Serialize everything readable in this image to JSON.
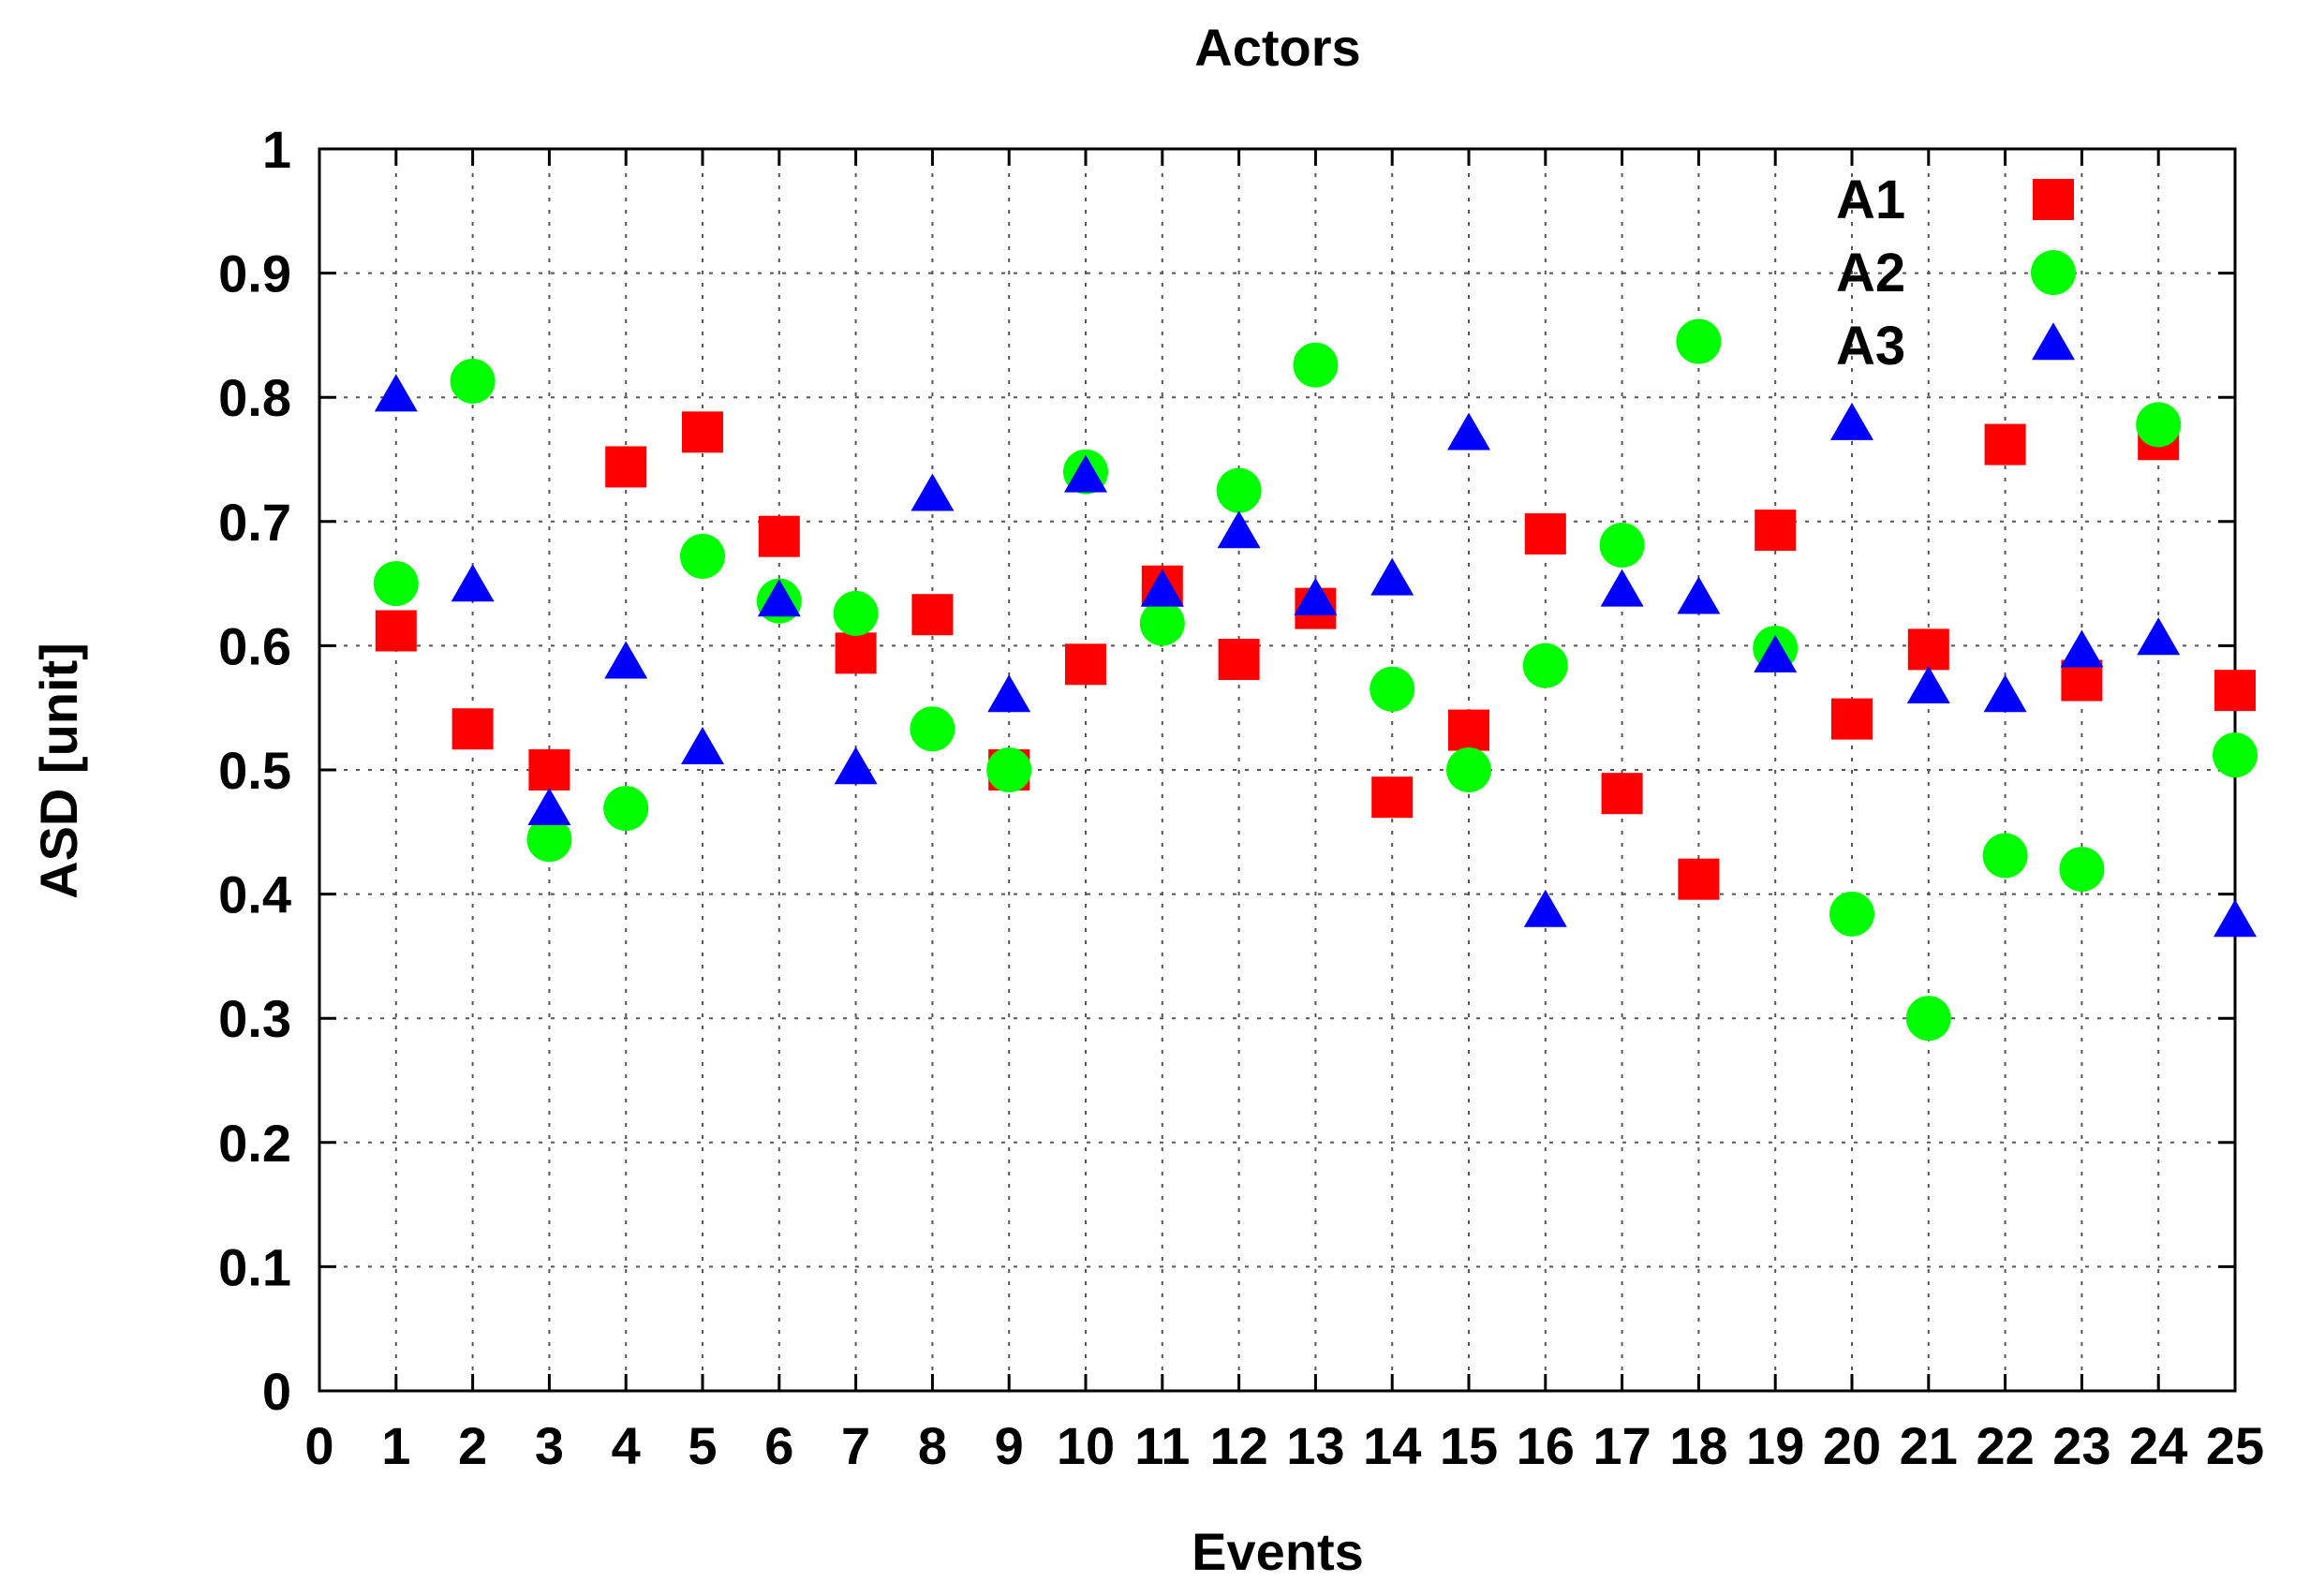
{
  "chart_data": {
    "type": "scatter",
    "title": "Actors",
    "xlabel": "Events",
    "ylabel": "ASD [unit]",
    "xlim": [
      0,
      25
    ],
    "ylim": [
      0,
      1
    ],
    "xticks": [
      "0",
      "1",
      "2",
      "3",
      "4",
      "5",
      "6",
      "7",
      "8",
      "9",
      "10",
      "11",
      "12",
      "13",
      "14",
      "15",
      "16",
      "17",
      "18",
      "19",
      "20",
      "21",
      "22",
      "23",
      "24",
      "25"
    ],
    "yticks": [
      "0",
      "0.1",
      "0.2",
      "0.3",
      "0.4",
      "0.5",
      "0.6",
      "0.7",
      "0.8",
      "0.9",
      "1"
    ],
    "grid": true,
    "legend_position": "top-right",
    "x": [
      1,
      2,
      3,
      4,
      5,
      6,
      7,
      8,
      9,
      10,
      11,
      12,
      13,
      14,
      15,
      16,
      17,
      18,
      19,
      20,
      21,
      22,
      23,
      24,
      25
    ],
    "series": [
      {
        "name": "A1",
        "marker": "square",
        "color": "#ff0000",
        "values": [
          0.612,
          0.533,
          0.5,
          0.744,
          0.772,
          0.688,
          0.594,
          0.625,
          0.5,
          0.585,
          0.648,
          0.589,
          0.63,
          0.478,
          0.532,
          0.69,
          0.481,
          0.412,
          0.693,
          0.541,
          0.597,
          0.762,
          0.572,
          0.766,
          0.564
        ]
      },
      {
        "name": "A2",
        "marker": "circle",
        "color": "#00ff00",
        "values": [
          0.65,
          0.813,
          0.444,
          0.469,
          0.672,
          0.636,
          0.626,
          0.533,
          0.5,
          0.74,
          0.618,
          0.725,
          0.826,
          0.565,
          0.5,
          0.584,
          0.681,
          0.845,
          0.598,
          0.384,
          0.3,
          0.431,
          0.42,
          0.778,
          0.512
        ]
      },
      {
        "name": "A3",
        "marker": "triangle",
        "color": "#0000ff",
        "values": [
          0.8,
          0.647,
          0.467,
          0.585,
          0.516,
          0.635,
          0.5,
          0.72,
          0.558,
          0.735,
          0.643,
          0.69,
          0.636,
          0.652,
          0.769,
          0.385,
          0.643,
          0.637,
          0.59,
          0.777,
          0.565,
          0.558,
          0.594,
          0.604,
          0.377
        ]
      }
    ]
  }
}
